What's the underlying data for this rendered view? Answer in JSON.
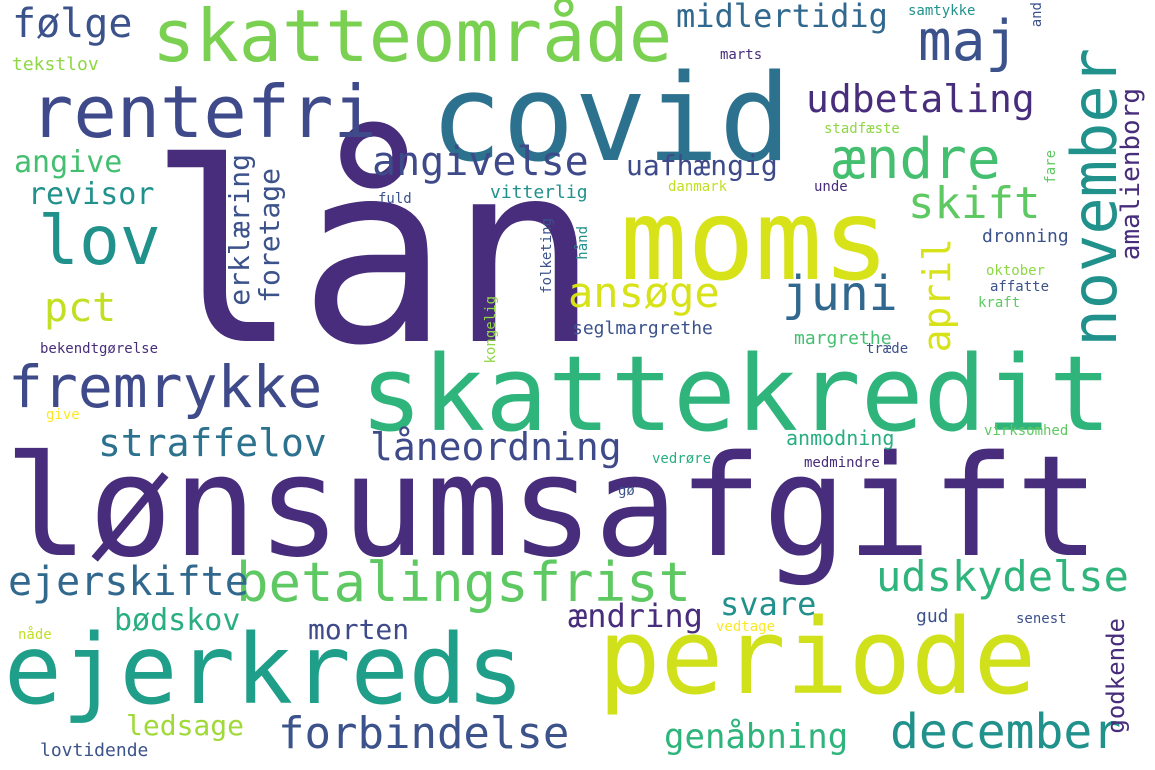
{
  "palette": {
    "dark_purple": "#472d7b",
    "indigo": "#3b528b",
    "blue": "#2c728e",
    "teal": "#21918c",
    "green_teal": "#28ae80",
    "green": "#5ec962",
    "light_green": "#addc30",
    "yellow": "#fde725"
  },
  "words": [
    "lån",
    "covid",
    "moms",
    "lønsumsafgift",
    "skattekredit",
    "periode",
    "ejerkreds",
    "skatteområde",
    "rentefri",
    "betalingsfrist",
    "fremrykke",
    "november",
    "maj",
    "ændre",
    "lov",
    "angivelse",
    "juni",
    "udskydelse",
    "december",
    "forbindelse",
    "ejerskifte",
    "straffelov",
    "låneordning",
    "ansøge",
    "skift",
    "udbetaling",
    "midlertidig",
    "følge",
    "angive",
    "revisor",
    "pct",
    "april",
    "amalienborg",
    "uafhængig",
    "erklæring",
    "foretage",
    "genåbning",
    "svare",
    "ændring",
    "bødskov",
    "morten",
    "ledsage",
    "godkende",
    "dronning",
    "seglmargrethe",
    "margrethe",
    "anmodning",
    "vitterlig",
    "tekstlov",
    "samtykke",
    "and",
    "marts",
    "stadfæste",
    "danmark",
    "unde",
    "fuld",
    "fare",
    "oktober",
    "affatte",
    "kraft",
    "folketing",
    "hånd",
    "kongelig",
    "bekendtgørelse",
    "træde",
    "give",
    "virksomhed",
    "vedrøre",
    "medmindre",
    "gø",
    "gud",
    "senest",
    "nåde",
    "vedtage",
    "lovtidende"
  ]
}
